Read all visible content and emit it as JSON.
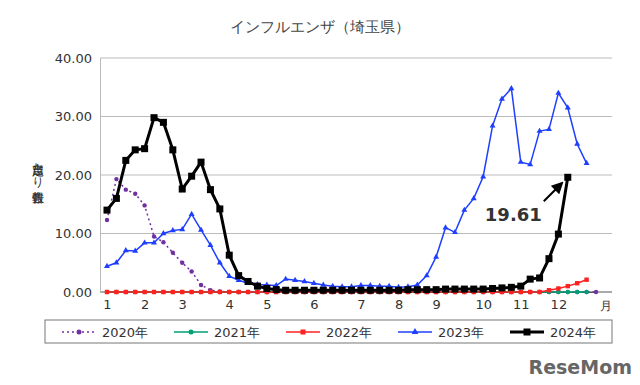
{
  "chart_data": {
    "type": "line",
    "title": "インフルエンザ（埼玉県）",
    "y_label": "定点当たり報告数",
    "x_label": "月",
    "annotation": "19.61",
    "watermark": "ReseMom",
    "grid": true,
    "legend": "bottom",
    "categories": [
      "1",
      null,
      null,
      null,
      "2",
      null,
      null,
      null,
      "3",
      null,
      null,
      null,
      null,
      "4",
      null,
      null,
      null,
      "5",
      null,
      null,
      null,
      null,
      "6",
      null,
      null,
      null,
      null,
      "7",
      null,
      null,
      null,
      "8",
      null,
      null,
      null,
      "9",
      null,
      null,
      null,
      null,
      "10",
      null,
      null,
      null,
      "11",
      null,
      null,
      null,
      "12",
      null,
      null,
      null,
      null
    ],
    "ylim": [
      0,
      40
    ],
    "yticks": [
      {
        "value": 0,
        "label": "0.00"
      },
      {
        "value": 10,
        "label": "10.00"
      },
      {
        "value": 20,
        "label": "20.00"
      },
      {
        "value": 30,
        "label": "30.00"
      },
      {
        "value": 40,
        "label": "40.00"
      }
    ],
    "series": [
      {
        "name": "2020年",
        "color": "#7030a0",
        "marker": "circle",
        "line_style": "dotted",
        "values": [
          12.3,
          19.3,
          17.5,
          16.8,
          14.8,
          9.5,
          8.5,
          6.7,
          5.0,
          3.5,
          1.2,
          0.3,
          0.1,
          0,
          0,
          0,
          0,
          0,
          0,
          0,
          0,
          0,
          0,
          0,
          0,
          0,
          0,
          0,
          0,
          0,
          0,
          0,
          0,
          0,
          0,
          0,
          0,
          0,
          0,
          0,
          0,
          0,
          0,
          0,
          0,
          0,
          0,
          0,
          0,
          0,
          0,
          0,
          0
        ]
      },
      {
        "name": "2021年",
        "color": "#00a070",
        "marker": "circle",
        "line_style": "solid",
        "values": [
          0,
          0,
          0,
          0,
          0,
          0,
          0,
          0,
          0,
          0,
          0,
          0,
          0,
          0,
          0,
          0,
          0,
          0,
          0,
          0,
          0,
          0,
          0,
          0,
          0,
          0,
          0,
          0,
          0,
          0,
          0,
          0,
          0,
          0,
          0,
          0,
          0,
          0,
          0,
          0,
          0,
          0,
          0,
          0,
          0,
          0,
          0,
          0,
          0,
          0,
          0,
          0,
          null
        ]
      },
      {
        "name": "2022年",
        "color": "#ff2020",
        "marker": "square",
        "line_style": "solid",
        "values": [
          0,
          0,
          0,
          0,
          0,
          0,
          0,
          0,
          0,
          0,
          0,
          0,
          0,
          0,
          0,
          0,
          0,
          0,
          0,
          0,
          0,
          0,
          0,
          0,
          0,
          0,
          0,
          0,
          0,
          0,
          0,
          0,
          0,
          0,
          0,
          0,
          0,
          0,
          0,
          0,
          0,
          0,
          0,
          0,
          0,
          0,
          0,
          0.3,
          0.6,
          1.0,
          1.5,
          2.1,
          null
        ]
      },
      {
        "name": "2023年",
        "color": "#1f3fff",
        "marker": "triangle",
        "line_style": "solid",
        "values": [
          4.4,
          5.0,
          7.1,
          7.0,
          8.4,
          8.4,
          10.0,
          10.5,
          10.7,
          13.3,
          10.6,
          8.0,
          5.0,
          2.7,
          2.0,
          1.5,
          1.3,
          1.2,
          1.1,
          2.2,
          2.0,
          1.8,
          1.5,
          1.2,
          1.0,
          0.9,
          0.9,
          1.1,
          1.1,
          1.0,
          1.0,
          0.8,
          0.9,
          1.2,
          2.8,
          6.0,
          11.0,
          10.2,
          14.0,
          16.0,
          19.7,
          28.4,
          33.0,
          34.8,
          22.2,
          21.8,
          27.5,
          27.8,
          34.0,
          31.5,
          25.3,
          22.0,
          null
        ]
      },
      {
        "name": "2024年",
        "color": "#000000",
        "marker": "square",
        "line_style": "solid",
        "values": [
          14.0,
          16.0,
          22.5,
          24.3,
          24.5,
          29.8,
          29.0,
          24.3,
          17.6,
          19.8,
          22.2,
          17.5,
          14.2,
          6.3,
          2.8,
          1.8,
          1.0,
          0.6,
          0.4,
          0.3,
          0.3,
          0.3,
          0.3,
          0.3,
          0.3,
          0.3,
          0.3,
          0.3,
          0.3,
          0.3,
          0.3,
          0.3,
          0.4,
          0.4,
          0.4,
          0.4,
          0.5,
          0.5,
          0.5,
          0.5,
          0.5,
          0.6,
          0.7,
          0.8,
          1.0,
          2.2,
          2.4,
          5.7,
          9.9,
          19.61,
          null,
          null,
          null
        ]
      }
    ]
  }
}
